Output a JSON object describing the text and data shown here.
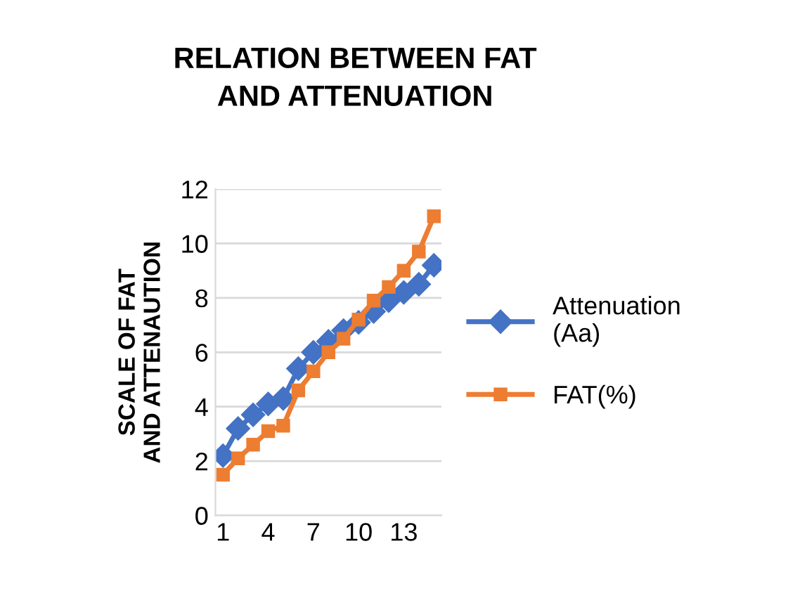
{
  "chart_data": {
    "type": "line",
    "title": "RELATION BETWEEN FAT AND ATTENUATION",
    "ylabel": "SCALE OF FAT AND ATTENAUTION",
    "categories": [
      "1",
      null,
      null,
      "4",
      null,
      null,
      "7",
      null,
      null,
      "10",
      null,
      null,
      "13",
      null,
      null
    ],
    "series": [
      {
        "name": "Attenuation (Aa)",
        "color": "#4472c4",
        "marker": "diamond",
        "values": [
          2.2,
          3.2,
          3.7,
          4.1,
          4.3,
          5.4,
          6.0,
          6.4,
          6.8,
          7.1,
          7.5,
          7.9,
          8.2,
          8.5,
          9.2
        ]
      },
      {
        "name": "FAT(%)",
        "color": "#ed7d31",
        "marker": "square",
        "values": [
          1.5,
          2.1,
          2.6,
          3.1,
          3.3,
          4.6,
          5.3,
          6.0,
          6.5,
          7.2,
          7.9,
          8.4,
          9.0,
          9.7,
          11.0
        ]
      }
    ],
    "ylim": [
      0,
      12
    ],
    "yticks": [
      0,
      2,
      4,
      6,
      8,
      10,
      12
    ],
    "grid": "y",
    "legend": "right",
    "line_style": "solid"
  }
}
